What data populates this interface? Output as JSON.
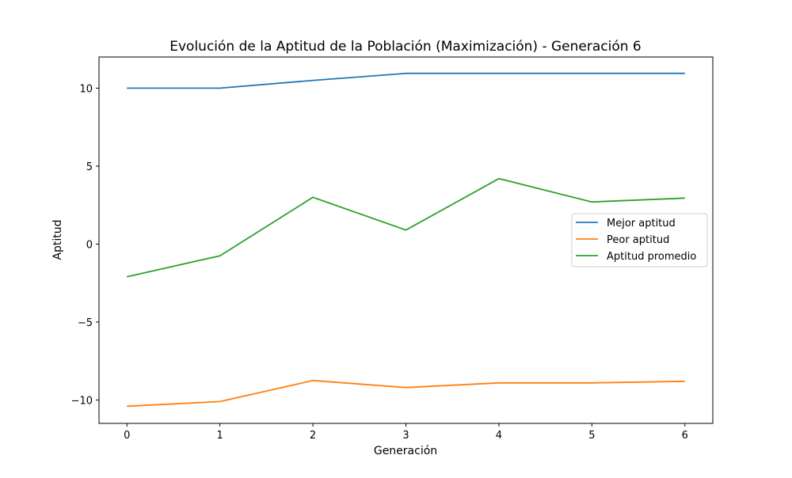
{
  "chart_data": {
    "type": "line",
    "title": "Evolución de la Aptitud de la Población (Maximización) - Generación 6",
    "xlabel": "Generación",
    "ylabel": "Aptitud",
    "x": [
      0,
      1,
      2,
      3,
      4,
      5,
      6
    ],
    "xticks": [
      "0",
      "1",
      "2",
      "3",
      "4",
      "5",
      "6"
    ],
    "yticks": [
      {
        "value": 10,
        "label": "10"
      },
      {
        "value": 5,
        "label": "5"
      },
      {
        "value": 0,
        "label": "0"
      },
      {
        "value": -5,
        "label": "−5"
      },
      {
        "value": -10,
        "label": "−10"
      }
    ],
    "xlim": [
      -0.3,
      6.3
    ],
    "ylim": [
      -11.5,
      12.0
    ],
    "grid": false,
    "legend_position": "center-right",
    "series": [
      {
        "name": "Mejor aptitud",
        "color": "#1f77b4",
        "values": [
          10.0,
          10.0,
          10.5,
          10.95,
          10.95,
          10.95,
          10.95
        ]
      },
      {
        "name": "Peor aptitud",
        "color": "#ff7f0e",
        "values": [
          -10.4,
          -10.1,
          -8.75,
          -9.2,
          -8.9,
          -8.9,
          -8.8
        ]
      },
      {
        "name": "Aptitud promedio",
        "color": "#2ca02c",
        "values": [
          -2.1,
          -0.75,
          3.0,
          0.9,
          4.2,
          2.7,
          2.95
        ]
      }
    ]
  }
}
